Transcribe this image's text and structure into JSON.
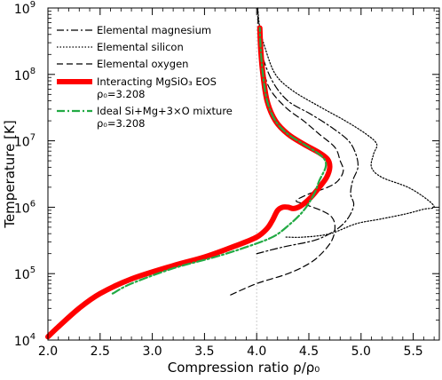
{
  "chart_data": {
    "type": "line",
    "title": "",
    "xlabel": "Compression ratio ρ/ρ₀",
    "ylabel": "Temperature [K]",
    "xlim": [
      2.0,
      5.75
    ],
    "ylim_log10": [
      4,
      9
    ],
    "yscale": "log",
    "grid": false,
    "legend_position": "top-left",
    "x_ticks": [
      "2.0",
      "2.5",
      "3.0",
      "3.5",
      "4.0",
      "4.5",
      "5.0",
      "5.5"
    ],
    "y_ticks": [
      {
        "base": "10",
        "exp": "4"
      },
      {
        "base": "10",
        "exp": "5"
      },
      {
        "base": "10",
        "exp": "6"
      },
      {
        "base": "10",
        "exp": "7"
      },
      {
        "base": "10",
        "exp": "8"
      },
      {
        "base": "10",
        "exp": "9"
      }
    ],
    "reference_line_x": 4.0,
    "legend": [
      {
        "label": "Elemental magnesium",
        "style": "dashdot-thin",
        "color": "#000000"
      },
      {
        "label": "Elemental silicon",
        "style": "dotted",
        "color": "#000000"
      },
      {
        "label": "Elemental oxygen",
        "style": "dashed",
        "color": "#000000"
      },
      {
        "label": "Interacting MgSiO₃ EOS",
        "label2": "ρ₀=3.208",
        "style": "solid-thick",
        "color": "#ff0000"
      },
      {
        "label": "Ideal Si+Mg+3×O mixture",
        "label2": "ρ₀=3.208",
        "style": "dashdot",
        "color": "#22aa44"
      }
    ],
    "series": [
      {
        "name": "Elemental magnesium",
        "color": "#000000",
        "points": [
          [
            4.0,
            5.3
          ],
          [
            4.25,
            5.4
          ],
          [
            4.55,
            5.5
          ],
          [
            4.72,
            5.62
          ],
          [
            4.83,
            5.75
          ],
          [
            4.9,
            5.9
          ],
          [
            4.93,
            6.05
          ],
          [
            4.9,
            6.2
          ],
          [
            4.92,
            6.4
          ],
          [
            4.97,
            6.6
          ],
          [
            4.95,
            6.8
          ],
          [
            4.88,
            7.0
          ],
          [
            4.72,
            7.2
          ],
          [
            4.52,
            7.4
          ],
          [
            4.3,
            7.6
          ],
          [
            4.15,
            7.9
          ],
          [
            4.05,
            8.3
          ],
          [
            4.02,
            8.6
          ],
          [
            4.01,
            9.0
          ]
        ]
      },
      {
        "name": "Elemental silicon",
        "color": "#000000",
        "points": [
          [
            4.28,
            5.55
          ],
          [
            4.45,
            5.55
          ],
          [
            4.7,
            5.6
          ],
          [
            4.95,
            5.75
          ],
          [
            5.18,
            5.82
          ],
          [
            5.43,
            5.9
          ],
          [
            5.6,
            5.97
          ],
          [
            5.7,
            6.0
          ],
          [
            5.63,
            6.12
          ],
          [
            5.45,
            6.3
          ],
          [
            5.2,
            6.45
          ],
          [
            5.1,
            6.6
          ],
          [
            5.12,
            6.8
          ],
          [
            5.15,
            6.95
          ],
          [
            5.05,
            7.1
          ],
          [
            4.85,
            7.3
          ],
          [
            4.62,
            7.5
          ],
          [
            4.35,
            7.75
          ],
          [
            4.18,
            8.0
          ],
          [
            4.08,
            8.4
          ],
          [
            4.03,
            8.7
          ],
          [
            4.01,
            9.0
          ]
        ]
      },
      {
        "name": "Elemental oxygen",
        "color": "#000000",
        "points": [
          [
            3.75,
            4.68
          ],
          [
            4.0,
            4.85
          ],
          [
            4.3,
            5.0
          ],
          [
            4.5,
            5.15
          ],
          [
            4.62,
            5.3
          ],
          [
            4.72,
            5.5
          ],
          [
            4.75,
            5.7
          ],
          [
            4.72,
            5.85
          ],
          [
            4.62,
            5.95
          ],
          [
            4.45,
            6.05
          ],
          [
            4.38,
            6.1
          ],
          [
            4.5,
            6.2
          ],
          [
            4.68,
            6.3
          ],
          [
            4.78,
            6.4
          ],
          [
            4.83,
            6.55
          ],
          [
            4.8,
            6.7
          ],
          [
            4.75,
            6.9
          ],
          [
            4.6,
            7.1
          ],
          [
            4.45,
            7.3
          ],
          [
            4.28,
            7.5
          ],
          [
            4.12,
            7.8
          ],
          [
            4.05,
            8.2
          ],
          [
            4.02,
            8.6
          ],
          [
            4.01,
            9.0
          ]
        ]
      },
      {
        "name": "Interacting MgSiO₃ EOS",
        "color": "#ff0000",
        "points": [
          [
            2.0,
            4.05
          ],
          [
            2.1,
            4.2
          ],
          [
            2.3,
            4.48
          ],
          [
            2.5,
            4.7
          ],
          [
            2.8,
            4.92
          ],
          [
            3.2,
            5.12
          ],
          [
            3.5,
            5.25
          ],
          [
            3.8,
            5.42
          ],
          [
            4.0,
            5.55
          ],
          [
            4.1,
            5.68
          ],
          [
            4.15,
            5.8
          ],
          [
            4.2,
            5.95
          ],
          [
            4.25,
            6.0
          ],
          [
            4.3,
            6.0
          ],
          [
            4.35,
            5.98
          ],
          [
            4.4,
            6.0
          ],
          [
            4.45,
            6.05
          ],
          [
            4.52,
            6.15
          ],
          [
            4.6,
            6.3
          ],
          [
            4.67,
            6.45
          ],
          [
            4.7,
            6.6
          ],
          [
            4.68,
            6.72
          ],
          [
            4.6,
            6.82
          ],
          [
            4.45,
            6.95
          ],
          [
            4.3,
            7.1
          ],
          [
            4.18,
            7.3
          ],
          [
            4.1,
            7.6
          ],
          [
            4.06,
            8.0
          ],
          [
            4.04,
            8.35
          ],
          [
            4.03,
            8.7
          ]
        ]
      },
      {
        "name": "Ideal Si+Mg+3×O mixture",
        "color": "#22aa44",
        "points": [
          [
            2.62,
            4.7
          ],
          [
            2.8,
            4.85
          ],
          [
            3.2,
            5.08
          ],
          [
            3.6,
            5.25
          ],
          [
            3.9,
            5.4
          ],
          [
            4.15,
            5.55
          ],
          [
            4.3,
            5.72
          ],
          [
            4.45,
            5.95
          ],
          [
            4.55,
            6.2
          ],
          [
            4.6,
            6.4
          ],
          [
            4.66,
            6.6
          ],
          [
            4.65,
            6.72
          ],
          [
            4.58,
            6.82
          ],
          [
            4.45,
            6.95
          ],
          [
            4.3,
            7.1
          ],
          [
            4.18,
            7.3
          ],
          [
            4.1,
            7.6
          ],
          [
            4.06,
            8.0
          ],
          [
            4.04,
            8.35
          ],
          [
            4.03,
            8.7
          ]
        ]
      }
    ]
  }
}
